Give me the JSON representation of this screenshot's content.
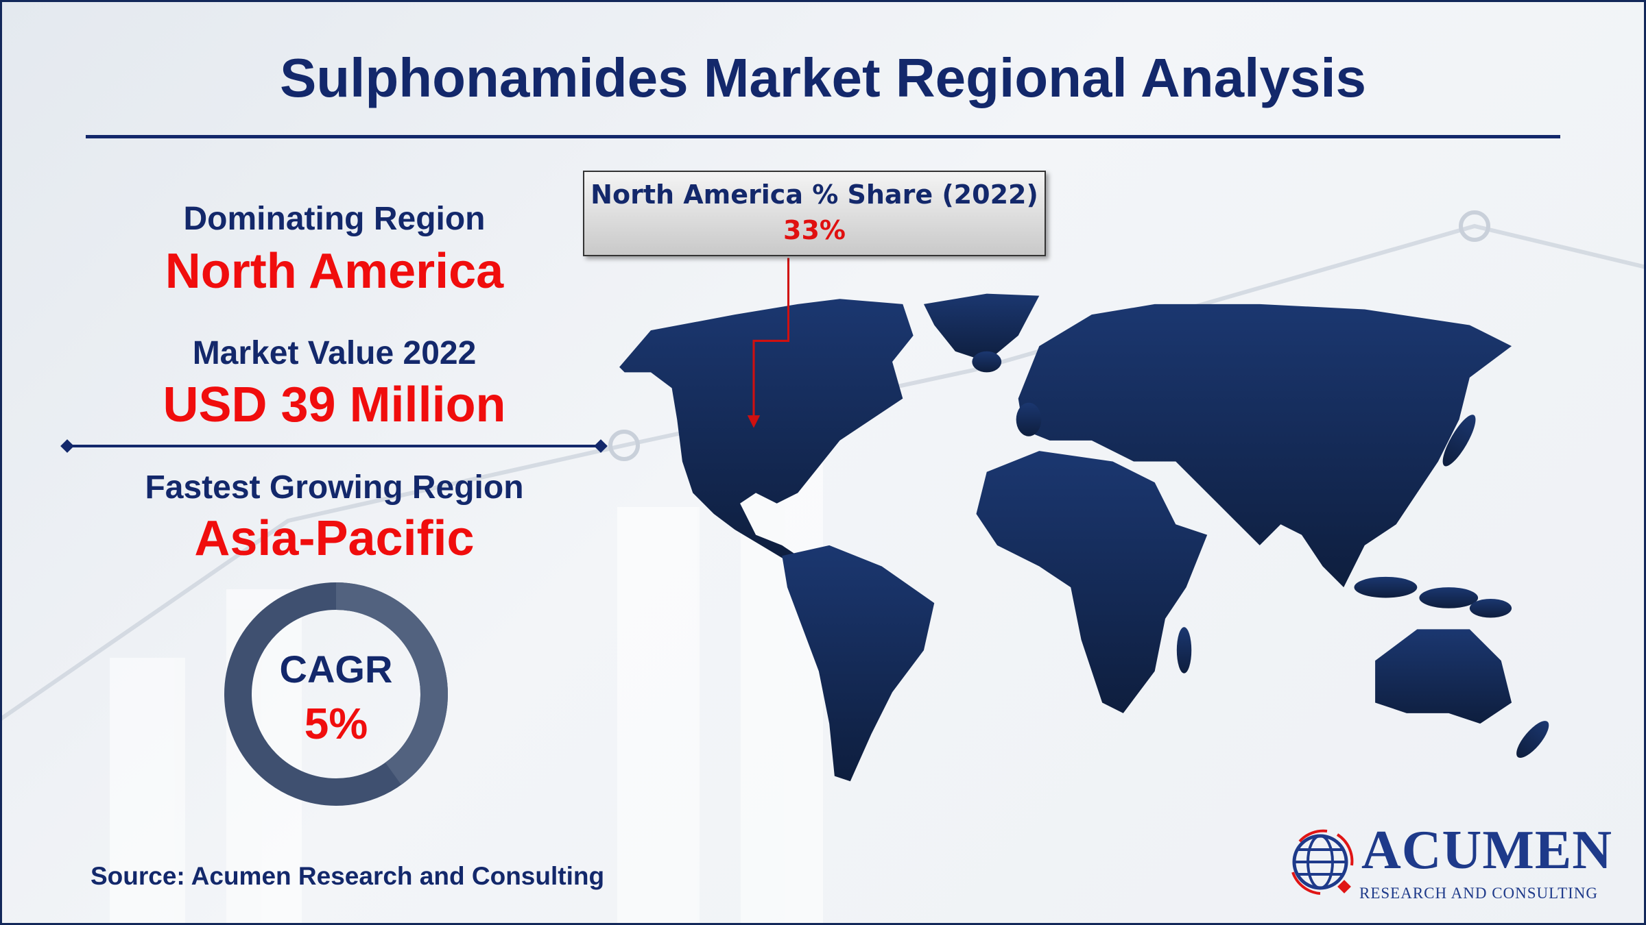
{
  "title": "Sulphonamides Market Regional Analysis",
  "left_panel": {
    "dominating_label": "Dominating Region",
    "dominating_value": "North America",
    "market_value_label": "Market Value 2022",
    "market_value": "USD 39 Million",
    "fastest_label": "Fastest Growing Region",
    "fastest_value": "Asia-Pacific"
  },
  "cagr": {
    "label": "CAGR",
    "value": "5%"
  },
  "callout": {
    "title": "North America % Share (2022)",
    "value": "33%"
  },
  "source": "Source: Acumen Research and Consulting",
  "logo": {
    "name": "ACUMEN",
    "tagline": "RESEARCH AND CONSULTING"
  },
  "colors": {
    "navy": "#13286b",
    "red": "#f00d0d",
    "map": "#15305f"
  }
}
